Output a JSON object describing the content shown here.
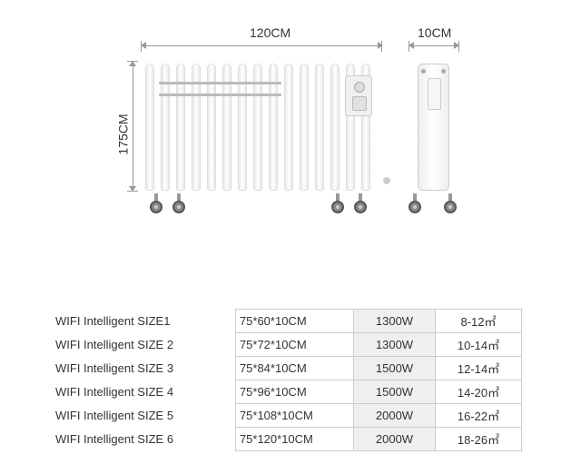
{
  "diagram": {
    "width_label": "120CM",
    "depth_label": "10CM",
    "height_label": "175CM",
    "fin_count": 15,
    "colors": {
      "fin_light": "#ffffff",
      "fin_shadow": "#e8e8e8",
      "border": "#dddddd",
      "dim_line": "#999999",
      "text": "#333333"
    }
  },
  "table": {
    "rows": [
      {
        "name": "WIFI Intelligent SIZE1",
        "dim": "75*60*10CM",
        "power": "1300W",
        "area": "8-12㎡"
      },
      {
        "name": "WIFI Intelligent SIZE 2",
        "dim": "75*72*10CM",
        "power": "1300W",
        "area": "10-14㎡"
      },
      {
        "name": "WIFI Intelligent SIZE 3",
        "dim": "75*84*10CM",
        "power": "1500W",
        "area": "12-14㎡"
      },
      {
        "name": "WIFI Intelligent SIZE 4",
        "dim": "75*96*10CM",
        "power": "1500W",
        "area": "14-20㎡"
      },
      {
        "name": "WIFI Intelligent SIZE 5",
        "dim": "75*108*10CM",
        "power": "2000W",
        "area": "16-22㎡"
      },
      {
        "name": "WIFI Intelligent SIZE 6",
        "dim": "75*120*10CM",
        "power": "2000W",
        "area": "18-26㎡"
      }
    ],
    "styling": {
      "border_color": "#cccccc",
      "power_bg": "#efefef",
      "font_size": 13,
      "text_color": "#333333"
    }
  }
}
